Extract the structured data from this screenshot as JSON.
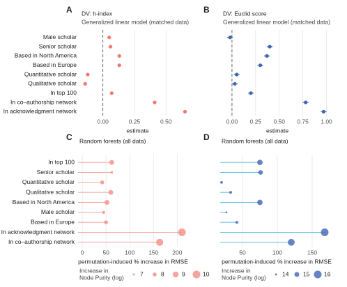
{
  "chart_data": [
    {
      "type": "dotplot",
      "panel": "A",
      "title": "DV: h-index",
      "subtitle": "Generalized linear model (matched data)",
      "categories": [
        "Male scholar",
        "Senior scholar",
        "Based in North America",
        "Based in Europe",
        "Quantitative scholar",
        "Qualitative scholar",
        "In top 100",
        "In co–authorship network",
        "In acknowledgment network"
      ],
      "values": [
        0.05,
        0.06,
        0.13,
        0.13,
        -0.12,
        -0.14,
        0.07,
        0.41,
        0.65
      ],
      "errors": [
        0.015,
        0.015,
        0.015,
        0.015,
        0.015,
        0.015,
        0.015,
        0.015,
        0.015
      ],
      "color": "#f07a6e",
      "xlabel": "estimate",
      "xlim": [
        -0.18,
        0.73
      ],
      "xticks": [
        {
          "value": 0,
          "label": "0.00"
        },
        {
          "value": 0.25,
          "label": "0.25"
        },
        {
          "value": 0.5,
          "label": "0.50"
        }
      ],
      "zero_line": true,
      "grid": true
    },
    {
      "type": "dotplot",
      "panel": "B",
      "title": "DV: Euclid score",
      "subtitle": "Generalized linear model (matched data)",
      "values": [
        -0.02,
        0.4,
        0.37,
        0.3,
        0.05,
        0.03,
        0.2,
        0.78,
        0.97
      ],
      "errors": [
        0.03,
        0.03,
        0.03,
        0.03,
        0.03,
        0.03,
        0.03,
        0.03,
        0.03
      ],
      "color": "#3f66b0",
      "xlabel": "estimate",
      "xlim": [
        -0.11,
        1.07
      ],
      "xticks": [
        {
          "value": 0,
          "label": "0.00"
        },
        {
          "value": 0.25,
          "label": "0.25"
        },
        {
          "value": 0.5,
          "label": "0.50"
        },
        {
          "value": 0.75,
          "label": "0.75"
        },
        {
          "value": 1,
          "label": "1.00"
        }
      ],
      "zero_line": true,
      "grid": true
    },
    {
      "type": "lollipop",
      "panel": "C",
      "title": "Random forests (all data)",
      "categories": [
        "In top 100",
        "Senior scholar",
        "Quantitative scholar",
        "Qualitative scholar",
        "Based in North America",
        "Male scholar",
        "Based in Europe",
        "In acknowledgment network",
        "In co–authorship network"
      ],
      "values": [
        62,
        62,
        42,
        60,
        52,
        45,
        50,
        210,
        163
      ],
      "sizes": [
        8.5,
        7.3,
        8,
        8.5,
        8.5,
        7.5,
        8,
        10,
        9.7
      ],
      "color": "#f4958d",
      "line_color": "#f4a39c",
      "xlabel": "permutation-induced % increase in RMSE",
      "xlim": [
        -9,
        223
      ],
      "xticks": [
        0,
        50,
        100,
        150,
        200
      ],
      "grid": true,
      "size_legend_title": [
        "Increase in",
        "Node Purity (log)"
      ],
      "size_legend": [
        7,
        8,
        9,
        10
      ],
      "size_range": [
        7,
        10
      ]
    },
    {
      "type": "lollipop",
      "panel": "D",
      "title": "Random forests (all data)",
      "values": [
        75,
        76,
        20,
        33,
        75,
        27,
        42,
        168,
        120
      ],
      "sizes": [
        15.2,
        14.9,
        14.2,
        14.3,
        15.2,
        13.9,
        14.3,
        16,
        15.7
      ],
      "color": "#4a6fb8",
      "line_color": "#5bbfe0",
      "xlabel": "permutation-induced % increase in RMSE",
      "xlim": [
        18,
        180
      ],
      "xticks": [
        50,
        100,
        150
      ],
      "grid": true,
      "size_legend_title": [
        "Increase in",
        "Node Purity (log)"
      ],
      "size_legend": [
        14,
        15,
        16
      ],
      "size_range": [
        14,
        16
      ]
    }
  ]
}
